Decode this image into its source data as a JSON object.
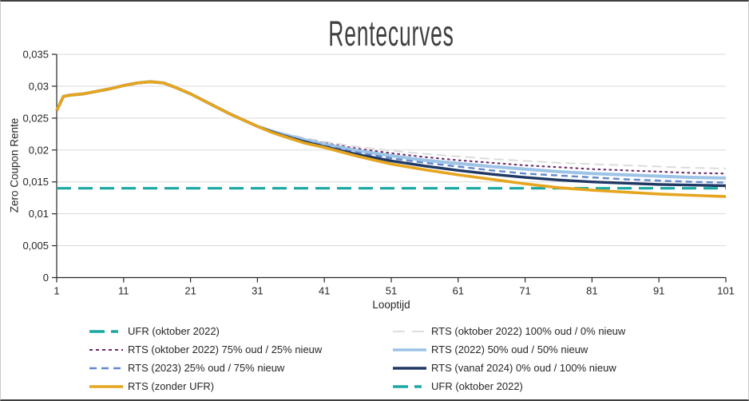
{
  "chart_data": {
    "type": "line",
    "title": "Rentecurves",
    "xlabel": "Looptijd",
    "ylabel": "Zero Coupon Rente",
    "xlim": [
      1,
      101
    ],
    "ylim": [
      0,
      0.035
    ],
    "grid": "horizontal",
    "legend_position": "bottom, two columns",
    "x_ticks": [
      1,
      11,
      21,
      31,
      41,
      51,
      61,
      71,
      81,
      91,
      101
    ],
    "x_tick_labels": [
      "1",
      "11",
      "21",
      "31",
      "41",
      "51",
      "61",
      "71",
      "81",
      "91",
      "101"
    ],
    "y_ticks": [
      0,
      0.005,
      0.01,
      0.015,
      0.02,
      0.025,
      0.03,
      0.035
    ],
    "y_tick_labels": [
      "0",
      "0,005",
      "0,01",
      "0,015",
      "0,02",
      "0,025",
      "0,03",
      "0,035"
    ],
    "x": [
      1,
      2,
      3,
      5,
      7,
      9,
      11,
      13,
      15,
      17,
      19,
      21,
      24,
      27,
      31,
      33,
      35,
      38,
      41,
      46,
      51,
      56,
      61,
      66,
      71,
      76,
      81,
      86,
      91,
      96,
      101
    ],
    "series": [
      {
        "id": "rts100",
        "name": "RTS (oktober 2022) 100% oud / 0% nieuw",
        "color": "#D9D9D9",
        "dash": "long",
        "width": 1.8,
        "values": [
          0.0262,
          0.0284,
          0.0286,
          0.0288,
          0.0292,
          0.0296,
          0.0301,
          0.0305,
          0.0307,
          0.0305,
          0.0297,
          0.0288,
          0.0272,
          0.0256,
          0.0237,
          0.0231,
          0.0226,
          0.0219,
          0.0213,
          0.0205,
          0.0199,
          0.0194,
          0.019,
          0.0186,
          0.0183,
          0.018,
          0.0178,
          0.0176,
          0.0174,
          0.0172,
          0.0171
        ]
      },
      {
        "id": "rts75",
        "name": "RTS (oktober 2022) 75% oud / 25% nieuw",
        "color": "#6B2767",
        "dash": "short",
        "width": 2,
        "values": [
          0.0262,
          0.0284,
          0.0286,
          0.0288,
          0.0292,
          0.0296,
          0.0301,
          0.0305,
          0.0307,
          0.0305,
          0.0297,
          0.0288,
          0.0272,
          0.0256,
          0.0237,
          0.023,
          0.0225,
          0.0217,
          0.0211,
          0.0202,
          0.0195,
          0.0189,
          0.0184,
          0.018,
          0.0176,
          0.0173,
          0.017,
          0.0168,
          0.0166,
          0.0164,
          0.0163
        ]
      },
      {
        "id": "rts50",
        "name": "RTS (2022) 50% oud / 50% nieuw",
        "color": "#9DC3E6",
        "dash": "solid",
        "width": 4,
        "values": [
          0.0262,
          0.0284,
          0.0286,
          0.0288,
          0.0292,
          0.0296,
          0.0301,
          0.0305,
          0.0307,
          0.0305,
          0.0297,
          0.0288,
          0.0272,
          0.0256,
          0.0237,
          0.023,
          0.0224,
          0.0216,
          0.0209,
          0.0199,
          0.0191,
          0.0184,
          0.0179,
          0.0174,
          0.017,
          0.0166,
          0.0163,
          0.0161,
          0.0159,
          0.0157,
          0.0156
        ]
      },
      {
        "id": "rts25",
        "name": "RTS (2023) 25% oud / 75% nieuw",
        "color": "#6288CC",
        "dash": "med",
        "width": 2.4,
        "values": [
          0.0262,
          0.0284,
          0.0286,
          0.0288,
          0.0292,
          0.0296,
          0.0301,
          0.0305,
          0.0307,
          0.0305,
          0.0297,
          0.0288,
          0.0272,
          0.0256,
          0.0237,
          0.0229,
          0.0223,
          0.0214,
          0.0207,
          0.0196,
          0.0187,
          0.018,
          0.0174,
          0.0168,
          0.0163,
          0.016,
          0.0157,
          0.0154,
          0.0152,
          0.015,
          0.0149
        ]
      },
      {
        "id": "rts0",
        "name": "RTS (vanaf 2024) 0% oud / 100% nieuw",
        "color": "#1F3864",
        "dash": "solid",
        "width": 3.4,
        "values": [
          0.0262,
          0.0284,
          0.0286,
          0.0288,
          0.0292,
          0.0296,
          0.0301,
          0.0305,
          0.0307,
          0.0305,
          0.0297,
          0.0288,
          0.0272,
          0.0256,
          0.0237,
          0.0229,
          0.0222,
          0.0213,
          0.0205,
          0.0193,
          0.0183,
          0.0175,
          0.0168,
          0.0162,
          0.0157,
          0.0153,
          0.015,
          0.0148,
          0.0146,
          0.0145,
          0.0144
        ]
      },
      {
        "id": "ufr",
        "name": "UFR (oktober 2022)",
        "color": "#1BA8A2",
        "dash": "duo",
        "width": 3.2,
        "values": [
          0.014,
          0.014,
          0.014,
          0.014,
          0.014,
          0.014,
          0.014,
          0.014,
          0.014,
          0.014,
          0.014,
          0.014,
          0.014,
          0.014,
          0.014,
          0.014,
          0.014,
          0.014,
          0.014,
          0.014,
          0.014,
          0.014,
          0.014,
          0.014,
          0.014,
          0.014,
          0.014,
          0.014,
          0.014,
          0.014,
          0.014
        ]
      },
      {
        "id": "zonder",
        "name": "RTS (zonder UFR)",
        "color": "#E6A51E",
        "dash": "solid",
        "width": 3.6,
        "values": [
          0.0262,
          0.0284,
          0.0286,
          0.0288,
          0.0292,
          0.0296,
          0.0301,
          0.0305,
          0.0307,
          0.0305,
          0.0297,
          0.0288,
          0.0272,
          0.0256,
          0.0237,
          0.0228,
          0.0221,
          0.0211,
          0.0204,
          0.019,
          0.0178,
          0.0169,
          0.0161,
          0.0154,
          0.0147,
          0.0141,
          0.0137,
          0.0134,
          0.0131,
          0.0129,
          0.0127
        ]
      }
    ]
  },
  "legend": {
    "columns": [
      {
        "items": [
          {
            "label": "UFR (oktober 2022)",
            "series": "ufr"
          },
          {
            "label": "RTS (oktober 2022) 75% oud / 25% nieuw",
            "series": "rts75"
          },
          {
            "label": "RTS (2023) 25% oud / 75% nieuw",
            "series": "rts25"
          },
          {
            "label": "RTS (zonder UFR)",
            "series": "zonder"
          }
        ]
      },
      {
        "items": [
          {
            "label": "RTS (oktober 2022) 100% oud / 0% nieuw",
            "series": "rts100"
          },
          {
            "label": "RTS (2022) 50% oud / 50% nieuw",
            "series": "rts50"
          },
          {
            "label": "RTS (vanaf 2024) 0% oud / 100% nieuw",
            "series": "rts0"
          },
          {
            "label": "UFR (oktober 2022)",
            "series": "ufr"
          }
        ]
      }
    ]
  },
  "colors": {
    "gridline": "#D9D9D9",
    "axis": "#262626",
    "title_text": "#3f3f3f"
  }
}
